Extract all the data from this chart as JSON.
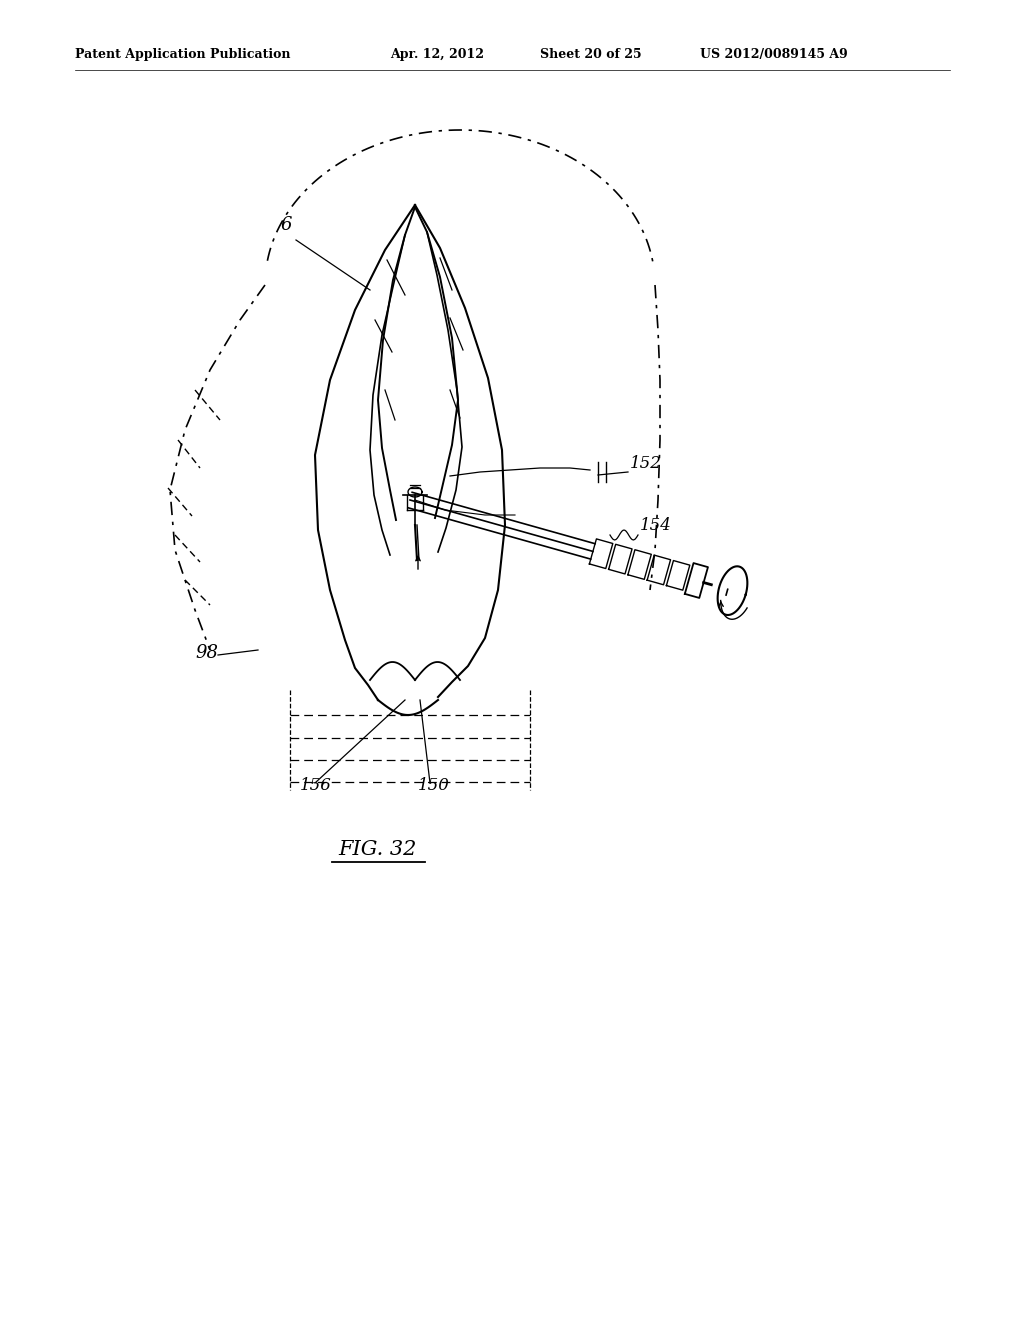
{
  "title_left": "Patent Application Publication",
  "title_date": "Apr. 12, 2012",
  "title_sheet": "Sheet 20 of 25",
  "title_patent": "US 2012/0089145 A9",
  "fig_label": "FIG. 32",
  "background": "#ffffff",
  "line_color": "#000000"
}
